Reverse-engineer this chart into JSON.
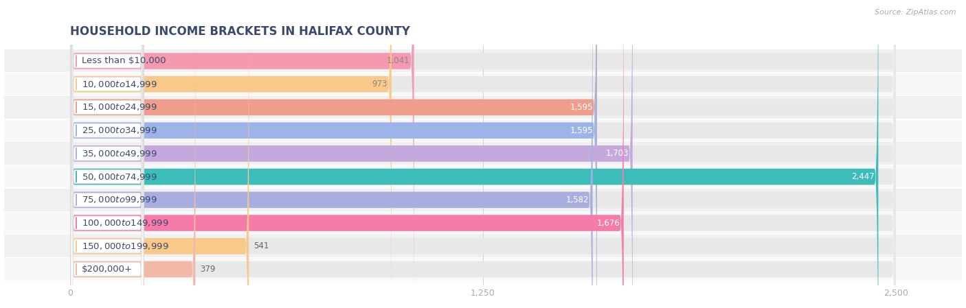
{
  "title": "HOUSEHOLD INCOME BRACKETS IN HALIFAX COUNTY",
  "source": "Source: ZipAtlas.com",
  "categories": [
    "Less than $10,000",
    "$10,000 to $14,999",
    "$15,000 to $24,999",
    "$25,000 to $34,999",
    "$35,000 to $49,999",
    "$50,000 to $74,999",
    "$75,000 to $99,999",
    "$100,000 to $149,999",
    "$150,000 to $199,999",
    "$200,000+"
  ],
  "values": [
    1041,
    973,
    1595,
    1595,
    1703,
    2447,
    1582,
    1676,
    541,
    379
  ],
  "bar_colors": [
    "#F599B0",
    "#F9C98A",
    "#EF9E8E",
    "#9DB4E8",
    "#C4AADC",
    "#3DBDBA",
    "#A8AEDE",
    "#F67BAA",
    "#F9C98A",
    "#F2B8A8"
  ],
  "value_colors": [
    "#888888",
    "#888888",
    "#ffffff",
    "#ffffff",
    "#ffffff",
    "#ffffff",
    "#ffffff",
    "#ffffff",
    "#888888",
    "#888888"
  ],
  "xlim": [
    0,
    2500
  ],
  "xticks": [
    0,
    1250,
    2500
  ],
  "bg_color": "#ffffff",
  "row_bg_color": "#f0f0f0",
  "bar_bg_color": "#e8e8e8",
  "title_fontsize": 12,
  "label_fontsize": 9.5,
  "value_fontsize": 8.5,
  "title_color": "#3a4a6b",
  "label_text_color": "#3a4a6b"
}
